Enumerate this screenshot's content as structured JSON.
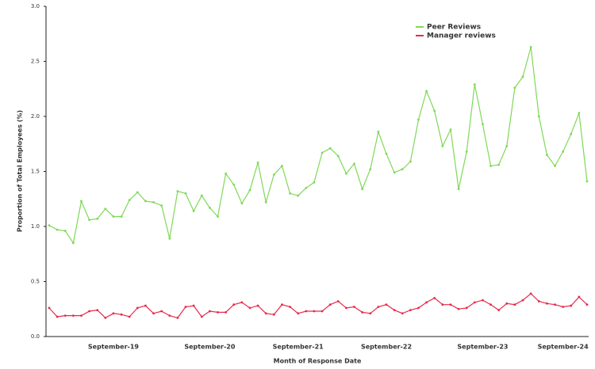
{
  "chart_data": {
    "type": "line",
    "x_label": "Month of Response Date",
    "y_label": "Proportion of Total Employees (%)",
    "categories": [
      null,
      null,
      null,
      null,
      null,
      null,
      null,
      null,
      "September-19",
      null,
      null,
      null,
      null,
      null,
      null,
      null,
      null,
      null,
      null,
      null,
      "September-20",
      null,
      null,
      null,
      null,
      null,
      null,
      null,
      null,
      null,
      null,
      "September-21",
      null,
      null,
      null,
      null,
      null,
      null,
      null,
      null,
      null,
      null,
      "September-22",
      null,
      null,
      null,
      null,
      null,
      null,
      null,
      null,
      null,
      null,
      null,
      "September-23",
      null,
      null,
      null,
      null,
      null,
      null,
      null,
      null,
      null,
      "September-24",
      null,
      null,
      null
    ],
    "series": [
      {
        "name": "Peer Reviews",
        "color": "#7ed957",
        "values": [
          1.01,
          0.97,
          0.96,
          0.85,
          1.23,
          1.06,
          1.07,
          1.16,
          1.09,
          1.09,
          1.24,
          1.31,
          1.23,
          1.22,
          1.19,
          0.89,
          1.32,
          1.3,
          1.14,
          1.28,
          1.17,
          1.09,
          1.48,
          1.38,
          1.21,
          1.33,
          1.58,
          1.22,
          1.47,
          1.55,
          1.3,
          1.28,
          1.35,
          1.4,
          1.67,
          1.71,
          1.64,
          1.48,
          1.57,
          1.34,
          1.52,
          1.86,
          1.66,
          1.49,
          1.52,
          1.59,
          1.97,
          2.23,
          2.05,
          1.73,
          1.88,
          1.34,
          1.68,
          2.29,
          1.93,
          1.55,
          1.56,
          1.73,
          2.26,
          2.36,
          2.63,
          2.0,
          1.65,
          1.55,
          1.68,
          1.84,
          2.03,
          1.41
        ]
      },
      {
        "name": "Manager reviews",
        "color": "#e8294a",
        "values": [
          0.26,
          0.18,
          0.19,
          0.19,
          0.19,
          0.23,
          0.24,
          0.17,
          0.21,
          0.2,
          0.18,
          0.26,
          0.28,
          0.21,
          0.23,
          0.19,
          0.17,
          0.27,
          0.28,
          0.18,
          0.23,
          0.22,
          0.22,
          0.29,
          0.31,
          0.26,
          0.28,
          0.21,
          0.2,
          0.29,
          0.27,
          0.21,
          0.23,
          0.23,
          0.23,
          0.29,
          0.32,
          0.26,
          0.27,
          0.22,
          0.21,
          0.27,
          0.29,
          0.24,
          0.21,
          0.24,
          0.26,
          0.31,
          0.35,
          0.29,
          0.29,
          0.25,
          0.26,
          0.31,
          0.33,
          0.29,
          0.24,
          0.3,
          0.29,
          0.33,
          0.39,
          0.32,
          0.3,
          0.29,
          0.27,
          0.28,
          0.36,
          0.29
        ]
      }
    ],
    "ylim": [
      0,
      3
    ],
    "yticks": [
      {
        "value": 0,
        "label": "0.0"
      },
      {
        "value": 0.5,
        "label": "0.5"
      },
      {
        "value": 1,
        "label": "1.0"
      },
      {
        "value": 1.5,
        "label": "1.5"
      },
      {
        "value": 2,
        "label": "2.0"
      },
      {
        "value": 2.5,
        "label": "2.5"
      },
      {
        "value": 3,
        "label": "3.0"
      }
    ],
    "grid": false,
    "legend": "upper right"
  }
}
